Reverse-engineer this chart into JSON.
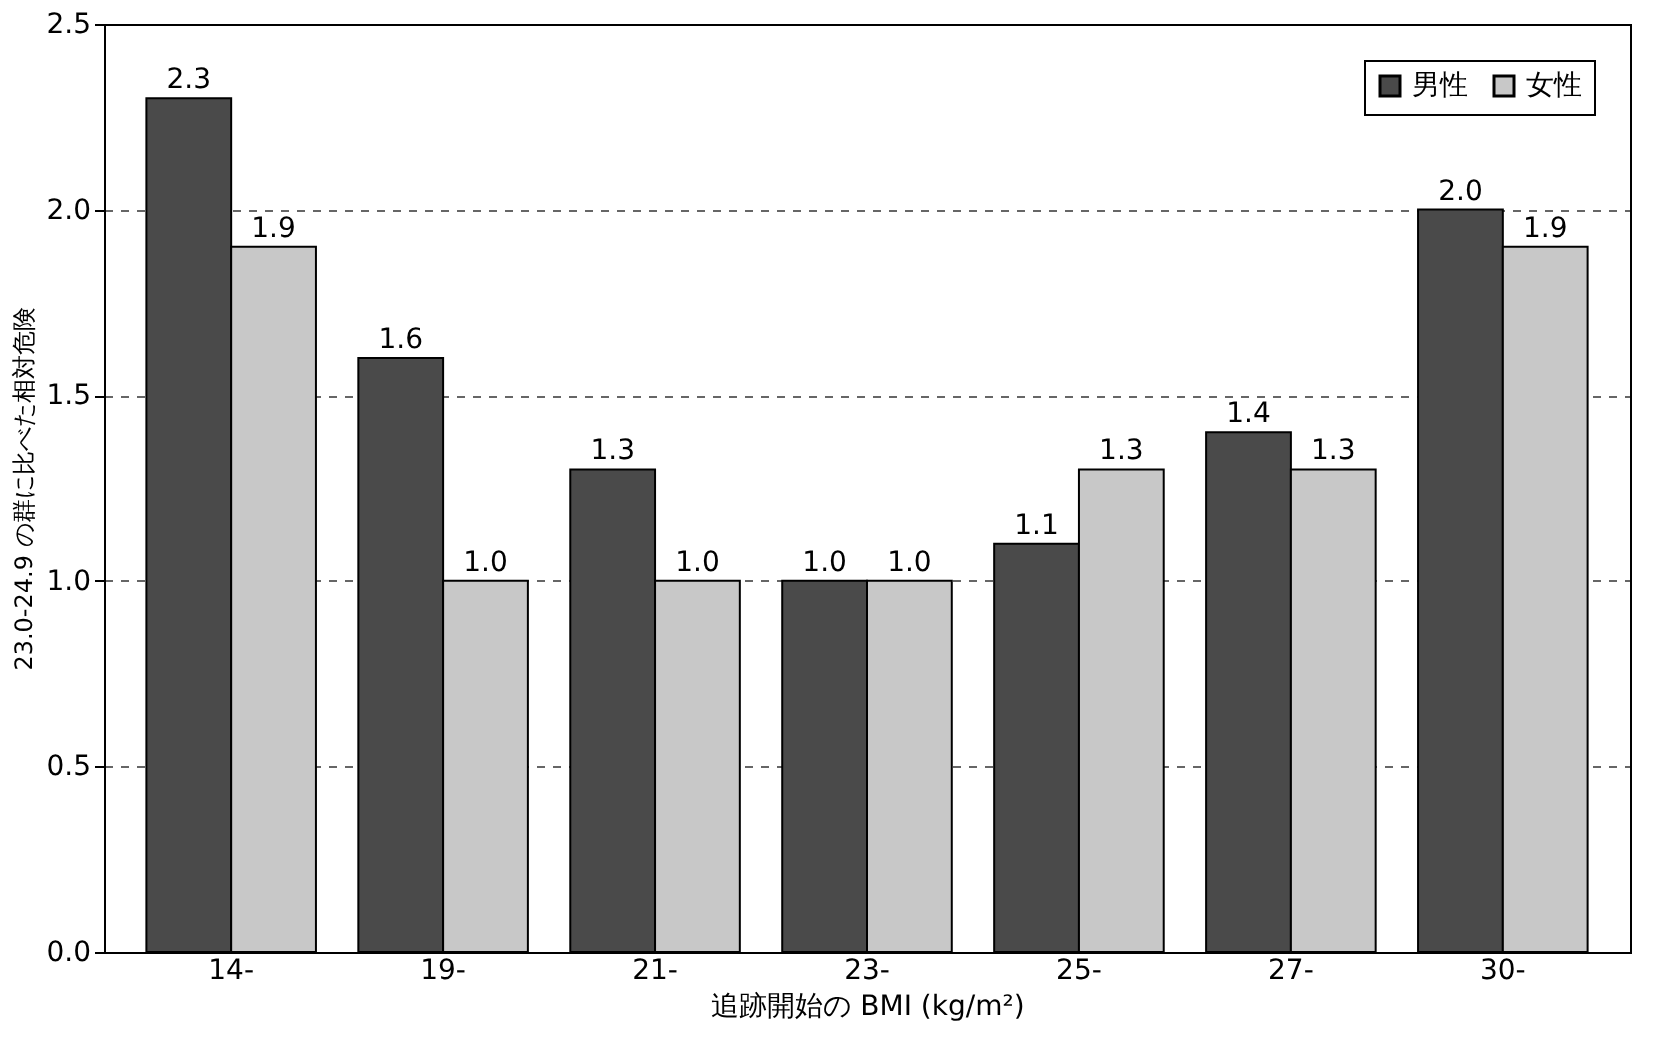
{
  "chart_data": {
    "type": "bar",
    "xlabel": "追跡開始の BMI (kg/m²)",
    "ylabel": "23.0-24.9 の群に比べた相対危険",
    "categories": [
      "14-",
      "19-",
      "21-",
      "23-",
      "25-",
      "27-",
      "30-"
    ],
    "series": [
      {
        "name": "男性",
        "color": "#4a4a4a",
        "values": [
          2.3,
          1.6,
          1.3,
          1.0,
          1.1,
          1.4,
          2.0
        ],
        "value_labels": [
          "2.3",
          "1.6",
          "1.3",
          "1.0",
          "1.1",
          "1.4",
          "2.0"
        ]
      },
      {
        "name": "女性",
        "color": "#c8c8c8",
        "values": [
          1.9,
          1.0,
          1.0,
          1.0,
          1.3,
          1.3,
          1.9
        ],
        "value_labels": [
          "1.9",
          "1.0",
          "1.0",
          "1.0",
          "1.3",
          "1.3",
          "1.9"
        ]
      }
    ],
    "ylim": [
      0,
      2.5
    ],
    "yticks": [
      {
        "value": 0,
        "label": "0.0"
      },
      0.5,
      {
        "value": 1,
        "label": "1.0"
      },
      1.5,
      {
        "value": 2,
        "label": "2.0"
      },
      2.5
    ],
    "grid": "y",
    "legend": "top right"
  }
}
